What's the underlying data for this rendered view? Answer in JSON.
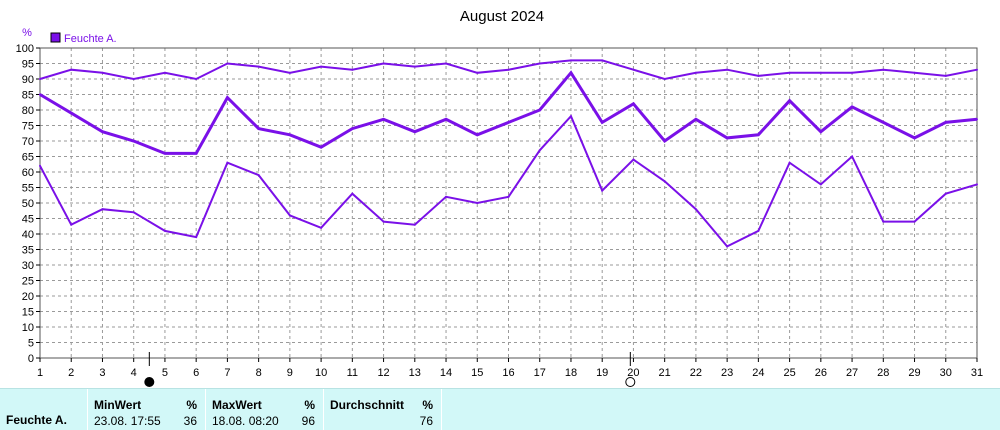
{
  "chart_data": {
    "type": "line",
    "title": "August 2024",
    "ylabel": "%",
    "ylim": [
      0,
      100
    ],
    "yticks": [
      0,
      5,
      10,
      15,
      20,
      25,
      30,
      35,
      40,
      45,
      50,
      55,
      60,
      65,
      70,
      75,
      80,
      85,
      90,
      95,
      100
    ],
    "xlim": [
      1,
      31
    ],
    "x": [
      1,
      2,
      3,
      4,
      5,
      6,
      7,
      8,
      9,
      10,
      11,
      12,
      13,
      14,
      15,
      16,
      17,
      18,
      19,
      20,
      21,
      22,
      23,
      24,
      25,
      26,
      27,
      28,
      29,
      30,
      31
    ],
    "legend": {
      "label": "Feuchte A.",
      "position": "top-left",
      "color": "#7a10e8"
    },
    "grid": true,
    "line_color": "#7a10e8",
    "markers": [
      {
        "x": 4.5,
        "symbol": "filled-circle"
      },
      {
        "x": 19.9,
        "symbol": "open-circle"
      }
    ],
    "series": [
      {
        "values": [
          90,
          93,
          92,
          90,
          92,
          90,
          95,
          94,
          92,
          94,
          93,
          95,
          94,
          95,
          92,
          93,
          95,
          96,
          96,
          93,
          90,
          92,
          93,
          91,
          92,
          92,
          92,
          93,
          92,
          91,
          93
        ],
        "stroke": 2
      },
      {
        "values": [
          85,
          79,
          73,
          70,
          66,
          66,
          84,
          74,
          72,
          68,
          74,
          77,
          73,
          77,
          72,
          76,
          80,
          92,
          76,
          82,
          70,
          77,
          71,
          72,
          83,
          73,
          81,
          76,
          71,
          76,
          77
        ],
        "stroke": 3
      },
      {
        "values": [
          62,
          43,
          48,
          47,
          41,
          39,
          63,
          59,
          46,
          42,
          53,
          44,
          43,
          52,
          50,
          52,
          67,
          78,
          54,
          64,
          57,
          48,
          36,
          41,
          63,
          56,
          65,
          44,
          44,
          53,
          56
        ],
        "stroke": 2
      }
    ]
  },
  "stats": {
    "series_label": "Feuchte A.",
    "min": {
      "header": "MinWert",
      "unit": "%",
      "time": "23.08.  17:55",
      "value": "36"
    },
    "max": {
      "header": "MaxWert",
      "unit": "%",
      "time": "18.08.  08:20",
      "value": "96"
    },
    "avg": {
      "header": "Durchschnitt",
      "unit": "%",
      "value": "76"
    }
  }
}
